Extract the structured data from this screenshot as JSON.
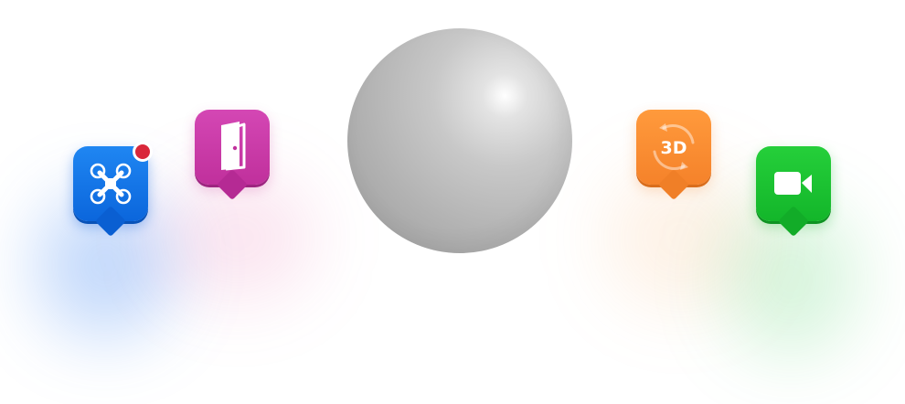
{
  "center_sphere": {
    "icon": "sphere"
  },
  "markers": [
    {
      "name": "drone",
      "icon": "drone-icon",
      "color": "#0b6fe3",
      "has_notification": true,
      "notification_color": "#d9273a"
    },
    {
      "name": "door",
      "icon": "door-icon",
      "color": "#c9359f"
    },
    {
      "name": "view3d",
      "icon": "rotate-3d-icon",
      "color": "#f7892e",
      "label": "3D"
    },
    {
      "name": "video",
      "icon": "video-camera-icon",
      "color": "#18bf2f"
    }
  ]
}
